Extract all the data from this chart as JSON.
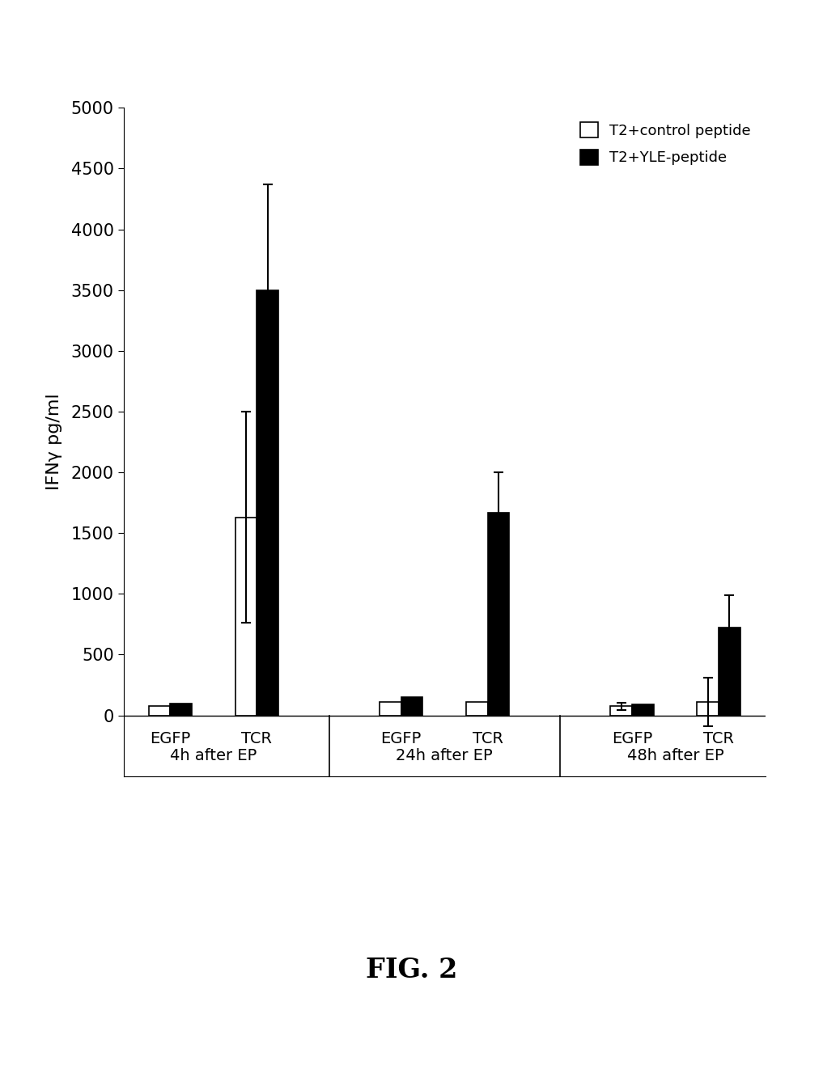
{
  "group_labels": [
    "4h after EP",
    "24h after EP",
    "48h after EP"
  ],
  "bar_values_white": [
    80,
    1630,
    110,
    110,
    75,
    110
  ],
  "bar_values_black": [
    100,
    3500,
    150,
    1670,
    90,
    720
  ],
  "error_white": [
    0,
    870,
    0,
    0,
    30,
    200
  ],
  "error_black": [
    0,
    870,
    0,
    330,
    0,
    270
  ],
  "ylabel": "IFNγ pg/ml",
  "ylim": [
    -500,
    5000
  ],
  "yticks": [
    0,
    500,
    1000,
    1500,
    2000,
    2500,
    3000,
    3500,
    4000,
    4500,
    5000
  ],
  "legend_labels": [
    "T2+control peptide",
    "T2+YLE-peptide"
  ],
  "fig_label": "FIG. 2",
  "bar_width": 0.3,
  "background_color": "#ffffff"
}
